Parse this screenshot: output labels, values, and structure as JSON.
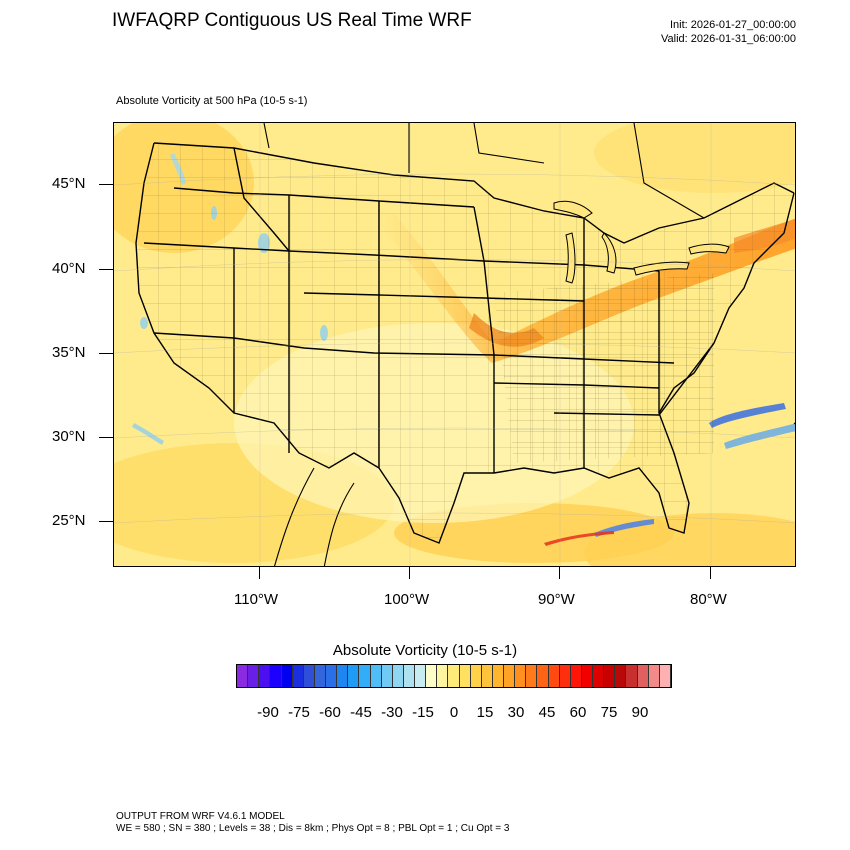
{
  "title": "IWFAQRP Contiguous US Real Time WRF",
  "init": "Init: 2026-01-27_00:00:00",
  "valid": "Valid: 2026-01-31_06:00:00",
  "field_label": "Absolute Vorticity at 500 hPa   (10-5 s-1)",
  "lat_labels": [
    "45°N",
    "40°N",
    "35°N",
    "30°N",
    "25°N"
  ],
  "lon_labels": [
    "110°W",
    "100°W",
    "90°W",
    "80°W"
  ],
  "colorbar": {
    "title": "Absolute Vorticity  (10-5 s-1)",
    "labels": [
      "-90",
      "-75",
      "-60",
      "-45",
      "-30",
      "-15",
      "0",
      "15",
      "30",
      "45",
      "60",
      "75",
      "90"
    ],
    "colors": [
      "#8a2be2",
      "#6a1fe6",
      "#4b0ff0",
      "#1e00ff",
      "#0000f0",
      "#1a2fe0",
      "#2f4fd8",
      "#3366dd",
      "#2a6fe8",
      "#1e86f0",
      "#1e9cf5",
      "#33adf7",
      "#50bdf7",
      "#6fcaf5",
      "#8fd6f2",
      "#aee2f0",
      "#c8ecf2",
      "#fdfdc8",
      "#fff5a0",
      "#ffeb7a",
      "#ffe060",
      "#ffd24a",
      "#ffc43a",
      "#ffb52e",
      "#ffa326",
      "#ff9020",
      "#ff7a1a",
      "#ff6414",
      "#ff4a10",
      "#ff2e0c",
      "#ff1408",
      "#f20000",
      "#dd0000",
      "#c80000",
      "#b80808",
      "#c83030",
      "#e06060",
      "#f28a8a",
      "#ffb0b0"
    ]
  },
  "footer": {
    "line1": "OUTPUT FROM WRF V4.6.1 MODEL",
    "line2": "WE = 580 ; SN = 380 ; Levels = 38 ; Dis = 8km ; Phys Opt = 8 ; PBL Opt = 1 ; Cu Opt = 3"
  }
}
